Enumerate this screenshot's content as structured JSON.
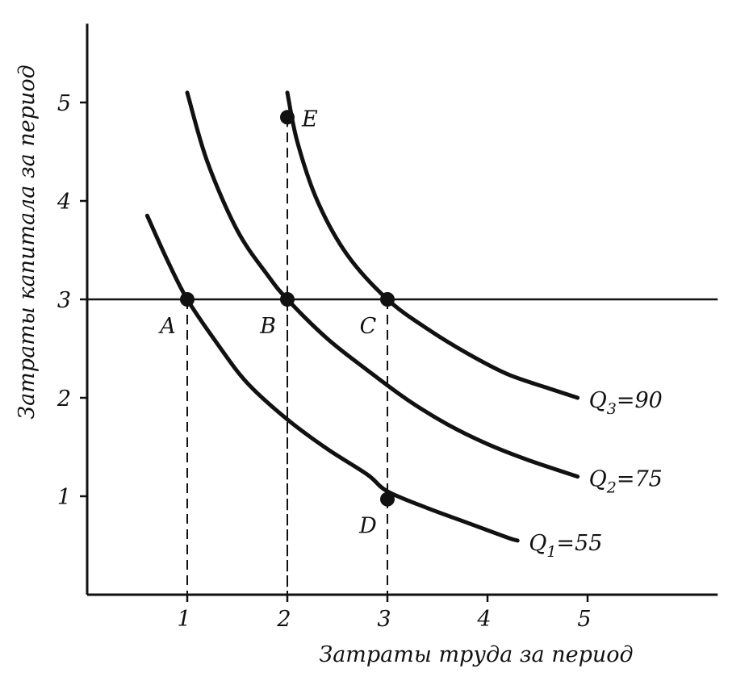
{
  "chart_data": {
    "type": "line",
    "title": "",
    "xlabel": "Затраты труда за период",
    "ylabel": "Затраты капитала за период",
    "xlim": [
      0,
      6.3
    ],
    "ylim": [
      0,
      5.8
    ],
    "xticks": [
      1,
      2,
      3,
      4,
      5
    ],
    "xtick_labels": [
      "1",
      "2",
      "3",
      "4",
      "5"
    ],
    "yticks": [
      1,
      2,
      3,
      4,
      5
    ],
    "ytick_labels": [
      "1",
      "2",
      "3",
      "4",
      "5"
    ],
    "grid": false,
    "series": [
      {
        "name": "Q1=55",
        "label_parts": {
          "base": "Q",
          "sub": "1",
          "rest": "=55"
        },
        "x": [
          0.6,
          0.8,
          1.0,
          1.3,
          1.6,
          2.0,
          2.4,
          2.8,
          3.0,
          3.4,
          3.8,
          4.2,
          4.3
        ],
        "y": [
          3.85,
          3.4,
          3.0,
          2.55,
          2.15,
          1.78,
          1.48,
          1.22,
          1.05,
          0.88,
          0.73,
          0.58,
          0.55
        ]
      },
      {
        "name": "Q2=75",
        "label_parts": {
          "base": "Q",
          "sub": "2",
          "rest": "=75"
        },
        "x": [
          1.0,
          1.2,
          1.5,
          1.8,
          2.0,
          2.4,
          2.8,
          3.2,
          3.6,
          4.0,
          4.4,
          4.9
        ],
        "y": [
          5.1,
          4.4,
          3.7,
          3.25,
          3.0,
          2.6,
          2.28,
          1.98,
          1.73,
          1.53,
          1.37,
          1.2
        ]
      },
      {
        "name": "Q3=90",
        "label_parts": {
          "base": "Q",
          "sub": "3",
          "rest": "=90"
        },
        "x": [
          2.0,
          2.1,
          2.3,
          2.6,
          3.0,
          3.4,
          3.8,
          4.2,
          4.6,
          4.9
        ],
        "y": [
          5.1,
          4.6,
          4.0,
          3.45,
          3.0,
          2.7,
          2.45,
          2.24,
          2.1,
          2.0
        ]
      }
    ],
    "horizontal_line": {
      "y": 3,
      "x_from": 0,
      "x_to": 6.3
    },
    "points": [
      {
        "label": "A",
        "x": 1,
        "y": 3,
        "label_pos": "below-left",
        "drop_line": true
      },
      {
        "label": "B",
        "x": 2,
        "y": 3,
        "label_pos": "below-left",
        "drop_line": true
      },
      {
        "label": "C",
        "x": 3,
        "y": 3,
        "label_pos": "below-left",
        "drop_line": true
      },
      {
        "label": "D",
        "x": 3,
        "y": 0.97,
        "label_pos": "below-left",
        "drop_line": false
      },
      {
        "label": "E",
        "x": 2,
        "y": 4.85,
        "label_pos": "right",
        "drop_line": true
      }
    ],
    "colors": {
      "ink": "#111111",
      "background": "#ffffff"
    }
  }
}
